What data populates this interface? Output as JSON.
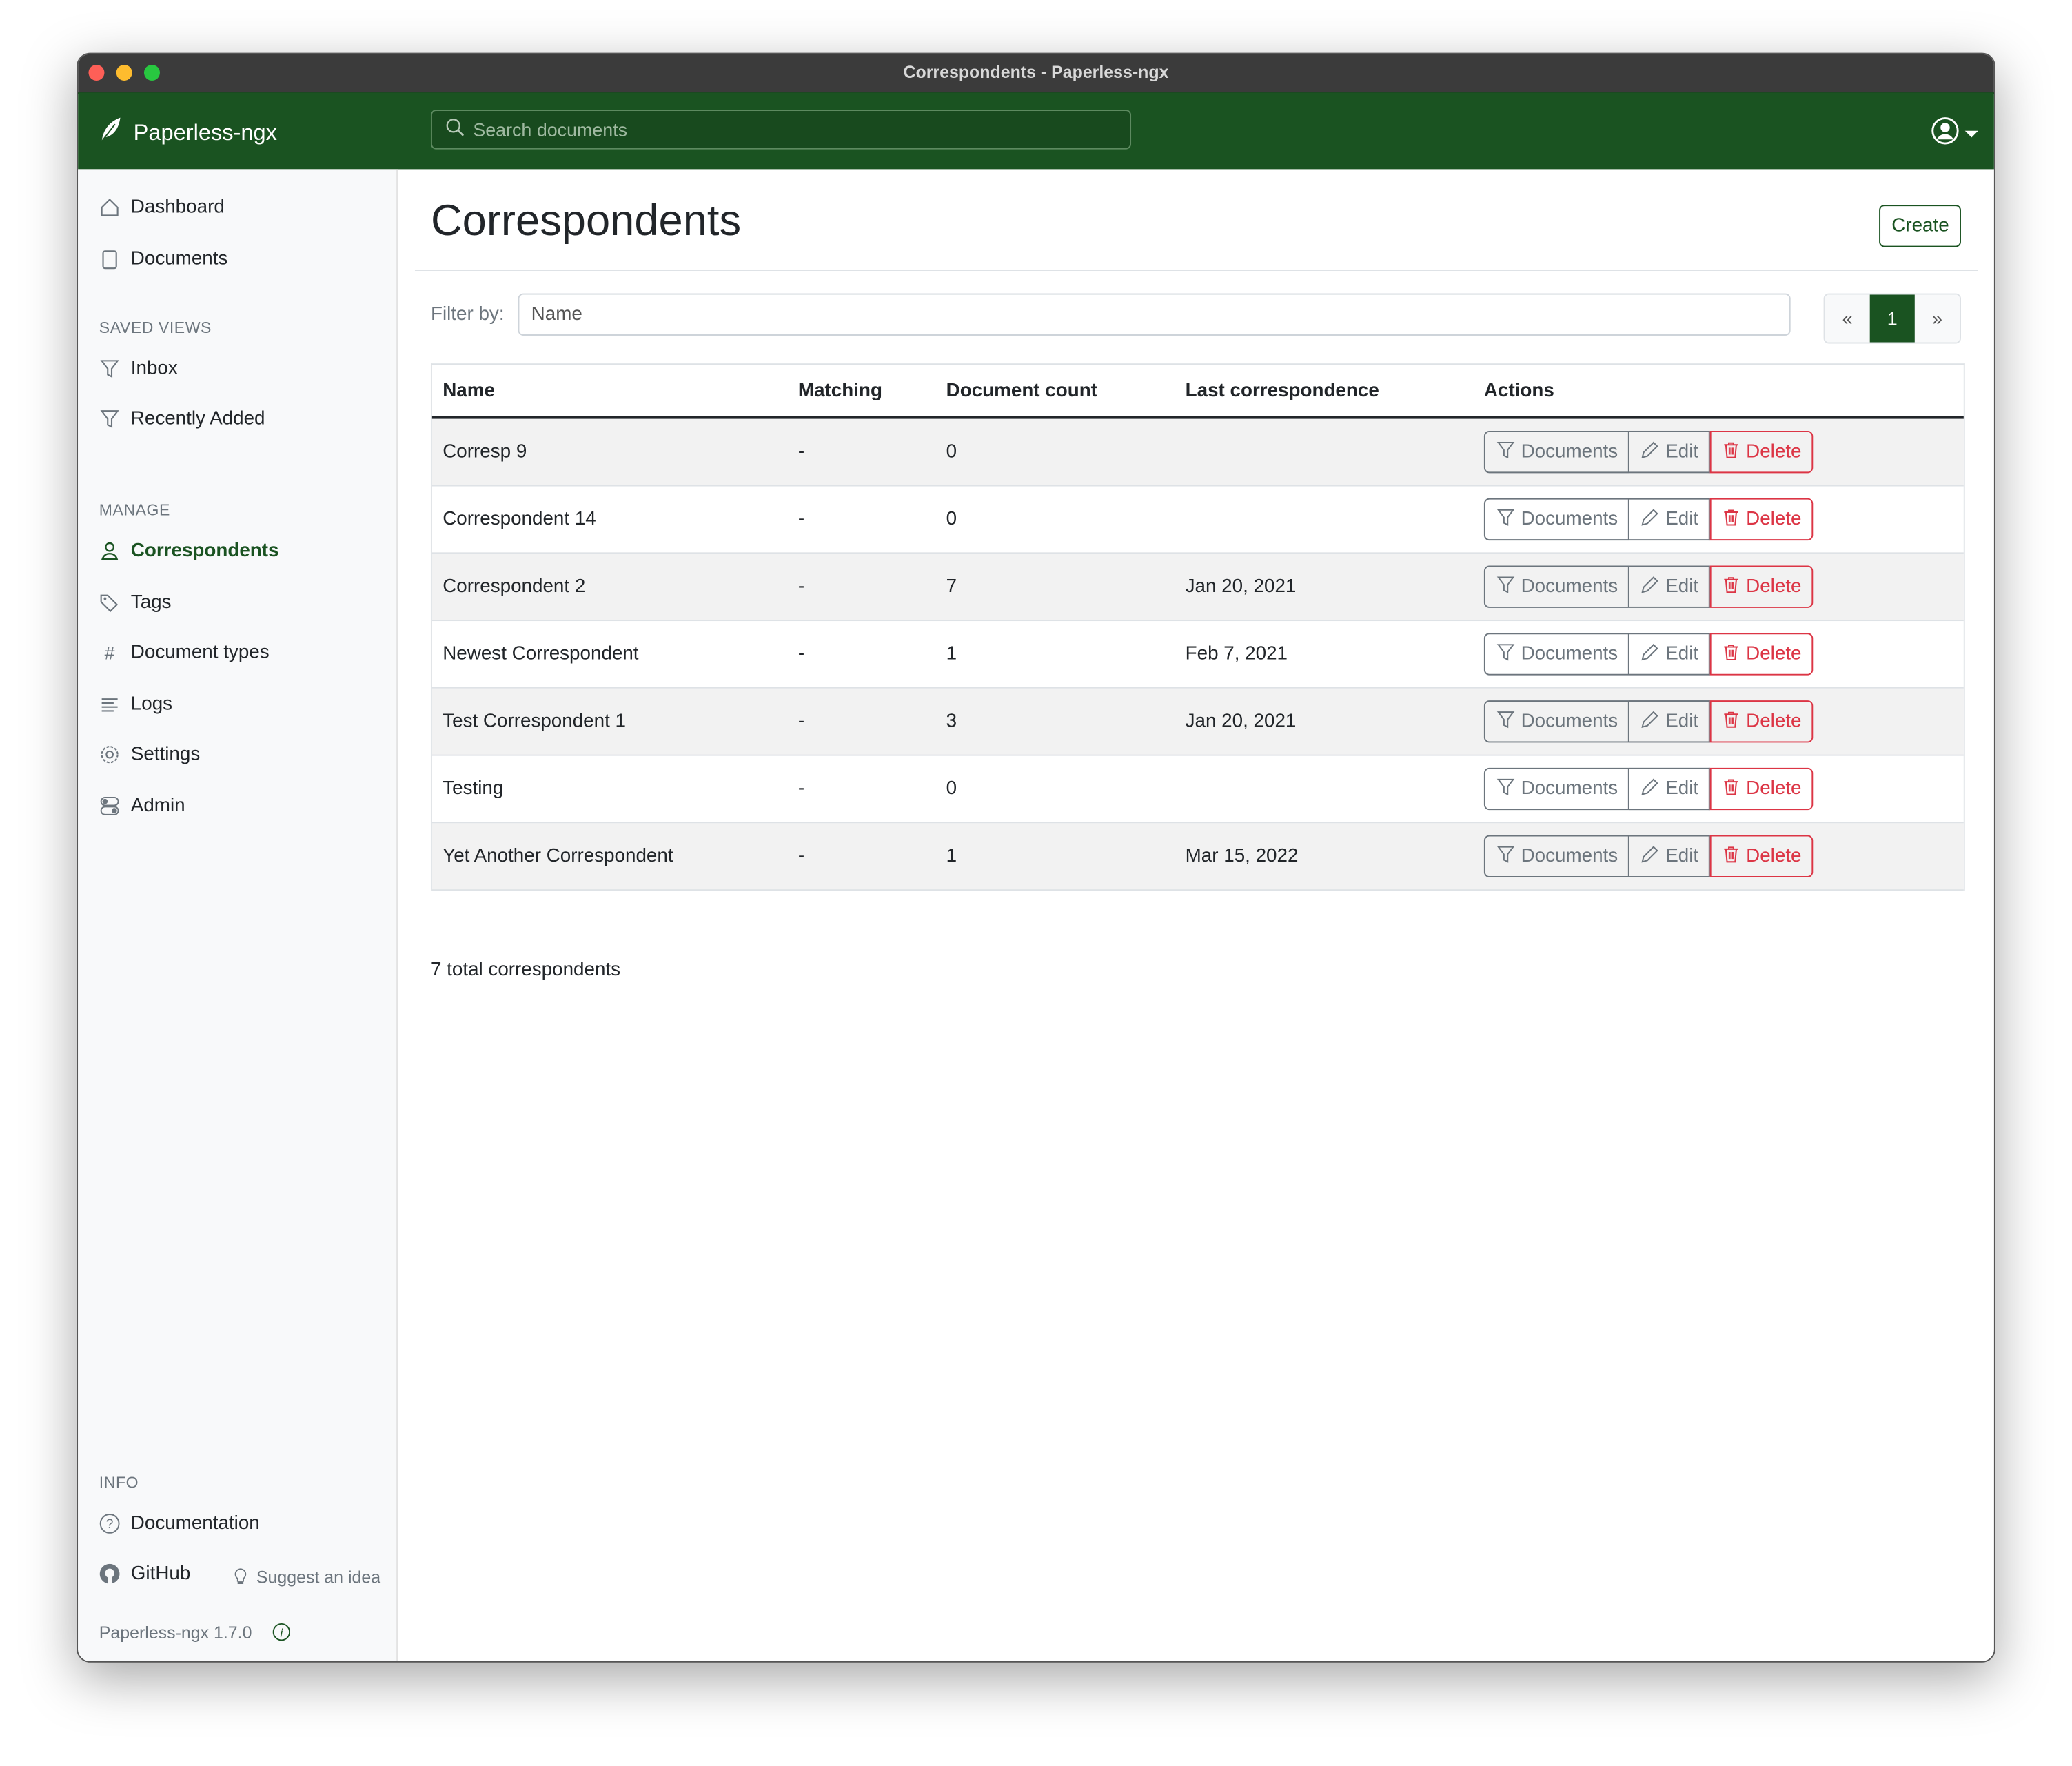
{
  "window": {
    "title": "Correspondents - Paperless-ngx"
  },
  "navbar": {
    "brand": "Paperless-ngx",
    "search_placeholder": "Search documents"
  },
  "sidebar": {
    "main_items": [
      {
        "label": "Dashboard",
        "icon": "house-icon"
      },
      {
        "label": "Documents",
        "icon": "files-icon"
      }
    ],
    "saved_views_header": "SAVED VIEWS",
    "saved_views": [
      {
        "label": "Inbox",
        "icon": "funnel-icon"
      },
      {
        "label": "Recently Added",
        "icon": "funnel-icon"
      }
    ],
    "manage_header": "MANAGE",
    "manage_items": [
      {
        "label": "Correspondents",
        "icon": "person-icon",
        "active": true
      },
      {
        "label": "Tags",
        "icon": "tags-icon"
      },
      {
        "label": "Document types",
        "icon": "hash-icon"
      },
      {
        "label": "Logs",
        "icon": "text-left-icon"
      },
      {
        "label": "Settings",
        "icon": "gear-icon"
      },
      {
        "label": "Admin",
        "icon": "toggles-icon"
      }
    ],
    "info_header": "INFO",
    "info_items": [
      {
        "label": "Documentation",
        "icon": "question-circle-icon"
      },
      {
        "label": "GitHub",
        "icon": "github-icon"
      }
    ],
    "suggest": "Suggest an idea",
    "version": "Paperless-ngx 1.7.0"
  },
  "main": {
    "title": "Correspondents",
    "create_label": "Create",
    "filter_label": "Filter by:",
    "filter_placeholder": "Name",
    "pager": {
      "prev": "«",
      "current": "1",
      "next": "»"
    },
    "columns": [
      "Name",
      "Matching",
      "Document count",
      "Last correspondence",
      "Actions"
    ],
    "action_labels": {
      "documents": "Documents",
      "edit": "Edit",
      "delete": "Delete"
    },
    "rows": [
      {
        "name": "Corresp 9",
        "matching": "-",
        "count": "0",
        "last": ""
      },
      {
        "name": "Correspondent 14",
        "matching": "-",
        "count": "0",
        "last": ""
      },
      {
        "name": "Correspondent 2",
        "matching": "-",
        "count": "7",
        "last": "Jan 20, 2021"
      },
      {
        "name": "Newest Correspondent",
        "matching": "-",
        "count": "1",
        "last": "Feb 7, 2021"
      },
      {
        "name": "Test Correspondent 1",
        "matching": "-",
        "count": "3",
        "last": "Jan 20, 2021"
      },
      {
        "name": "Testing",
        "matching": "-",
        "count": "0",
        "last": ""
      },
      {
        "name": "Yet Another Correspondent",
        "matching": "-",
        "count": "1",
        "last": "Mar 15, 2022"
      }
    ],
    "total": "7 total correspondents"
  },
  "colors": {
    "brand": "#1a5321",
    "danger": "#dc3545",
    "secondary": "#6c757d"
  }
}
